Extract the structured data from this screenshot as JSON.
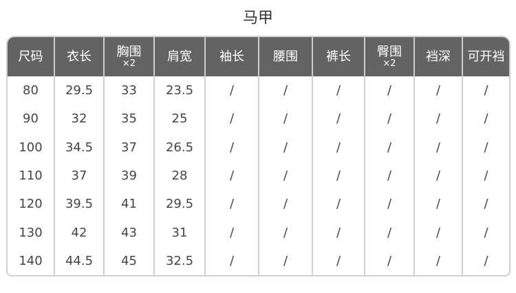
{
  "title": "马甲",
  "columns": [
    {
      "label": "尺码",
      "sub": ""
    },
    {
      "label": "衣长",
      "sub": ""
    },
    {
      "label": "胸围",
      "sub": "×2"
    },
    {
      "label": "肩宽",
      "sub": ""
    },
    {
      "label": "袖长",
      "sub": ""
    },
    {
      "label": "腰围",
      "sub": ""
    },
    {
      "label": "裤长",
      "sub": ""
    },
    {
      "label": "臀围",
      "sub": "×2"
    },
    {
      "label": "裆深",
      "sub": ""
    },
    {
      "label": "可开裆",
      "sub": ""
    }
  ],
  "rows": [
    [
      "80",
      "29.5",
      "33",
      "23.5",
      "/",
      "/",
      "/",
      "/",
      "/",
      "/"
    ],
    [
      "90",
      "32",
      "35",
      "25",
      "/",
      "/",
      "/",
      "/",
      "/",
      "/"
    ],
    [
      "100",
      "34.5",
      "37",
      "26.5",
      "/",
      "/",
      "/",
      "/",
      "/",
      "/"
    ],
    [
      "110",
      "37",
      "39",
      "28",
      "/",
      "/",
      "/",
      "/",
      "/",
      "/"
    ],
    [
      "120",
      "39.5",
      "41",
      "29.5",
      "/",
      "/",
      "/",
      "/",
      "/",
      "/"
    ],
    [
      "130",
      "42",
      "43",
      "31",
      "/",
      "/",
      "/",
      "/",
      "/",
      "/"
    ],
    [
      "140",
      "44.5",
      "45",
      "32.5",
      "/",
      "/",
      "/",
      "/",
      "/",
      "/"
    ]
  ]
}
